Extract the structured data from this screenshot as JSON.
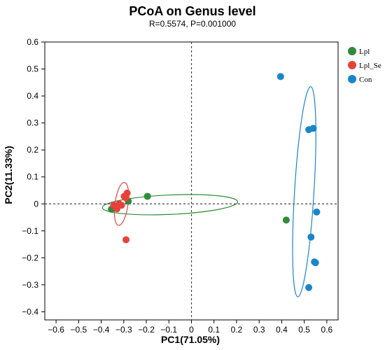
{
  "chart_data": {
    "type": "scatter",
    "title": "PCoA on Genus level",
    "subtitle": "R=0.5574, P=0.001000",
    "xlabel": "PC1(71.05%)",
    "ylabel": "PC2(11.33%)",
    "xlim": [
      -0.65,
      0.65
    ],
    "ylim": [
      -0.43,
      0.6
    ],
    "x_ticks": [
      -0.6,
      -0.5,
      -0.4,
      -0.3,
      -0.2,
      -0.1,
      0,
      0.1,
      0.2,
      0.3,
      0.4,
      0.5,
      0.6
    ],
    "x_tick_labels": [
      "−0.6",
      "−0.5",
      "−0.4",
      "−0.3",
      "−0.2",
      "−0.1",
      "0",
      "0.1",
      "0.2",
      "0.3",
      "0.4",
      "0.5",
      "0.6"
    ],
    "y_ticks": [
      -0.4,
      -0.3,
      -0.2,
      -0.1,
      0,
      0.1,
      0.2,
      0.3,
      0.4,
      0.5,
      0.6
    ],
    "y_tick_labels": [
      "−0.4",
      "−0.3",
      "−0.2",
      "−0.1",
      "0",
      "0.1",
      "0.2",
      "0.3",
      "0.4",
      "0.5",
      "0.6"
    ],
    "zero_lines": true,
    "legend_position": "top-right",
    "series": [
      {
        "name": "Lpl",
        "color": "#2e8b3a",
        "points": [
          [
            -0.355,
            -0.02
          ],
          [
            -0.28,
            0.01
          ],
          [
            -0.195,
            0.028
          ],
          [
            0.42,
            -0.06
          ]
        ],
        "ellipse": {
          "cx": -0.095,
          "cy": -0.003,
          "rx": 0.3,
          "ry": 0.036,
          "angle_deg": -2.5
        }
      },
      {
        "name": "Lpl_Se",
        "color": "#e8413c",
        "points": [
          [
            -0.345,
            -0.005
          ],
          [
            -0.335,
            -0.012
          ],
          [
            -0.33,
            -0.018
          ],
          [
            -0.32,
            0.0
          ],
          [
            -0.31,
            -0.005
          ],
          [
            -0.298,
            0.028
          ],
          [
            -0.29,
            0.022
          ],
          [
            -0.285,
            0.04
          ],
          [
            -0.29,
            -0.133
          ]
        ],
        "ellipse": {
          "cx": -0.31,
          "cy": 0.0,
          "rx": 0.029,
          "ry": 0.08,
          "angle_deg": 8
        }
      },
      {
        "name": "Con",
        "color": "#1a86c8",
        "points": [
          [
            0.395,
            0.472
          ],
          [
            0.52,
            0.275
          ],
          [
            0.54,
            0.28
          ],
          [
            0.555,
            -0.03
          ],
          [
            0.53,
            -0.123
          ],
          [
            0.545,
            -0.215
          ],
          [
            0.55,
            -0.218
          ],
          [
            0.52,
            -0.31
          ]
        ],
        "ellipse": {
          "cx": 0.5,
          "cy": 0.045,
          "rx": 0.043,
          "ry": 0.39,
          "angle_deg": 3.5
        }
      }
    ]
  }
}
